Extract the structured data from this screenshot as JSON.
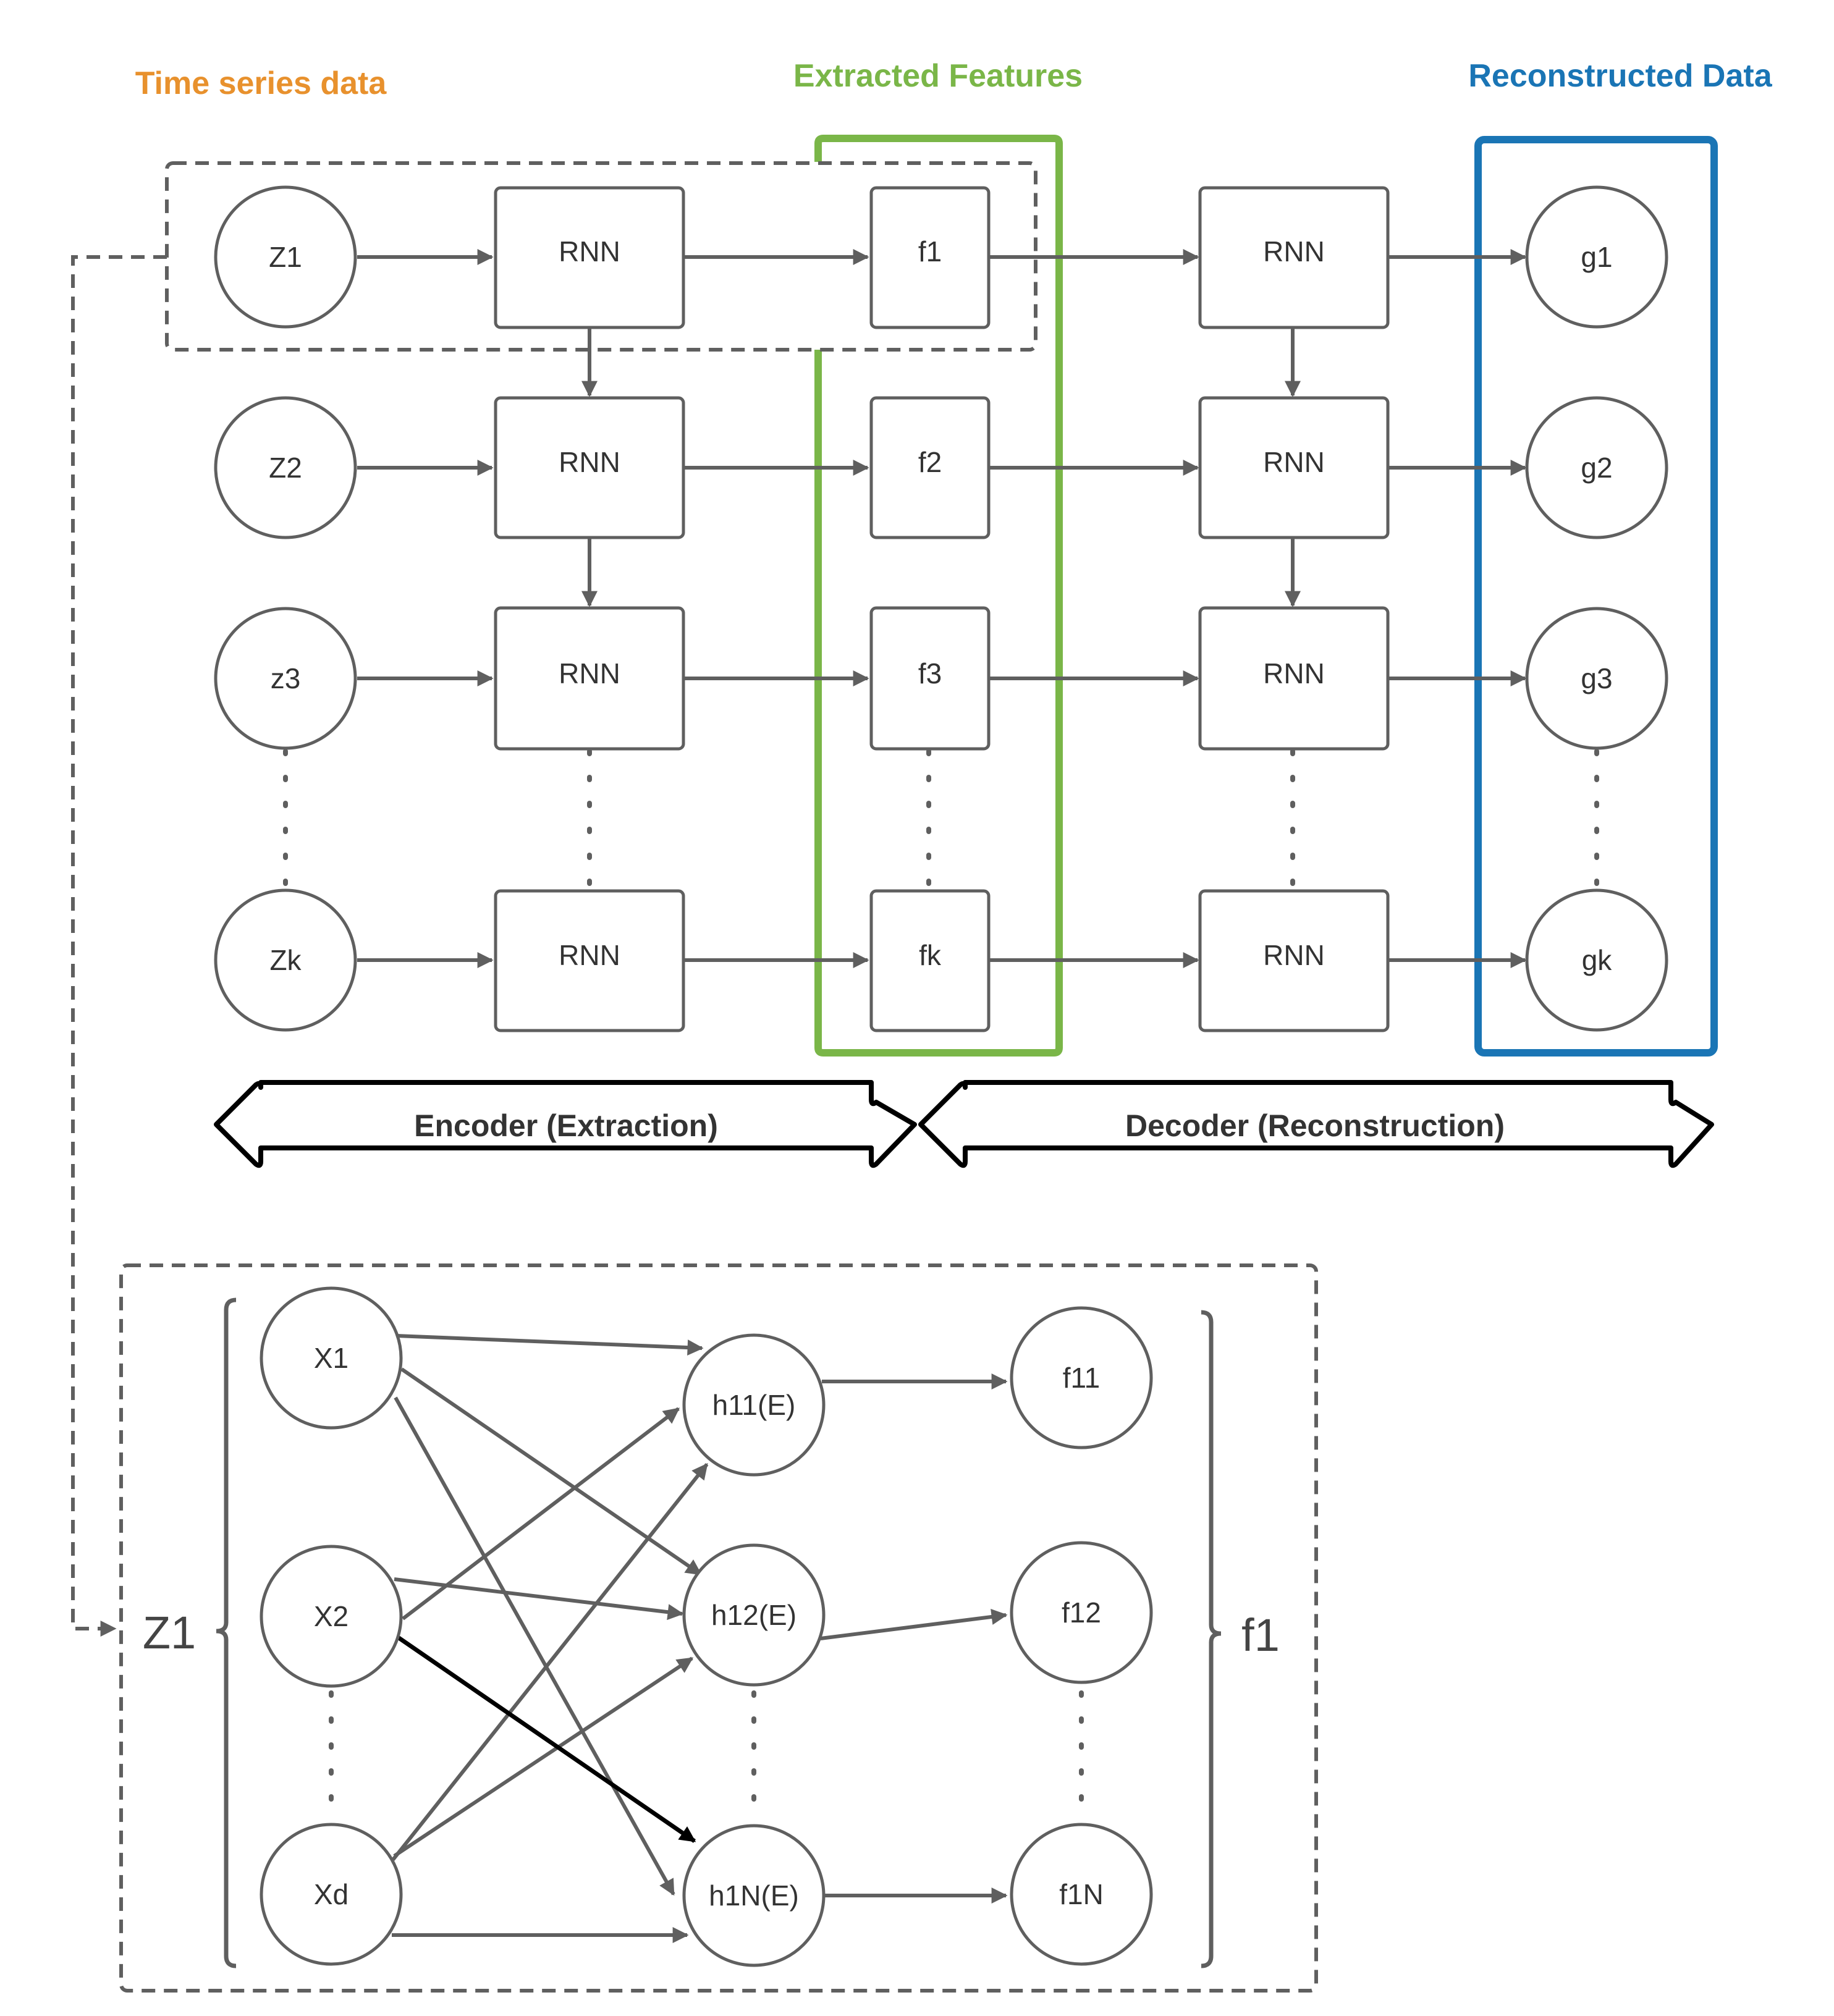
{
  "headers": {
    "time_series": "Time series data",
    "extracted": "Extracted Features",
    "reconstructed": "Reconstructed Data"
  },
  "colors": {
    "time_series": "#E8912D",
    "extracted": "#7AB648",
    "reconstructed": "#1A75B5",
    "stroke": "#5f5f5f",
    "highlight_edge": "#000000"
  },
  "encoder": {
    "inputs": [
      "Z1",
      "Z2",
      "z3",
      "Zk"
    ],
    "rnn_label": "RNN",
    "features": [
      "f1",
      "f2",
      "f3",
      "fk"
    ]
  },
  "decoder": {
    "rnn_label": "RNN",
    "outputs": [
      "g1",
      "g2",
      "g3",
      "gk"
    ]
  },
  "bands": {
    "encoder": "Encoder (Extraction)",
    "decoder": "Decoder (Reconstruction)"
  },
  "detail": {
    "input_group": "Z1",
    "output_group": "f1",
    "inputs": [
      "X1",
      "X2",
      "Xd"
    ],
    "hidden": [
      "h11(E)",
      "h12(E)",
      "h1N(E)"
    ],
    "outputs": [
      "f11",
      "f12",
      "f1N"
    ]
  }
}
